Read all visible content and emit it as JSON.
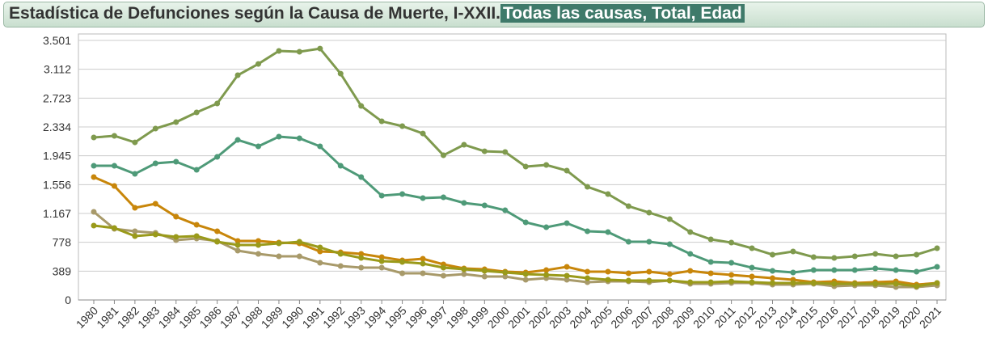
{
  "chart_data": {
    "type": "line",
    "title": "Estadística de Defunciones según la Causa de Muerte, I-XXII.",
    "subtitle": "Todas las causas, Total, Edad",
    "categories": [
      "1980",
      "1981",
      "1982",
      "1983",
      "1984",
      "1985",
      "1986",
      "1987",
      "1988",
      "1989",
      "1990",
      "1991",
      "1992",
      "1993",
      "1994",
      "1995",
      "1996",
      "1997",
      "1998",
      "1999",
      "2000",
      "2001",
      "2002",
      "2003",
      "2004",
      "2005",
      "2006",
      "2007",
      "2008",
      "2009",
      "2010",
      "2011",
      "2012",
      "2013",
      "2014",
      "2015",
      "2016",
      "2017",
      "2018",
      "2019",
      "2020",
      "2021"
    ],
    "ylim": [
      0,
      3501
    ],
    "yticks": [
      0,
      389,
      778,
      {
        "value": 1167,
        "label": "1.167"
      },
      {
        "value": 1556,
        "label": "1.556"
      },
      {
        "value": 1945,
        "label": "1.945"
      },
      {
        "value": 2334,
        "label": "2.334"
      },
      {
        "value": 2723,
        "label": "2.723"
      },
      {
        "value": 3112,
        "label": "3.112"
      },
      {
        "value": 3501,
        "label": "3.501"
      }
    ],
    "grid": true,
    "series": [
      {
        "color": "#7f9a4e",
        "values": [
          2192,
          2214,
          2126,
          2312,
          2399,
          2530,
          2650,
          3032,
          3184,
          3359,
          3348,
          3391,
          3053,
          2617,
          2410,
          2345,
          2246,
          1952,
          2094,
          2006,
          1996,
          1799,
          1821,
          1745,
          1527,
          1429,
          1265,
          1178,
          1090,
          916,
          818,
          774,
          698,
          611,
          654,
          578,
          567,
          589,
          622,
          589,
          611,
          698
        ]
      },
      {
        "color": "#4e9a78",
        "values": [
          1810,
          1810,
          1701,
          1843,
          1865,
          1756,
          1930,
          2159,
          2072,
          2203,
          2181,
          2072,
          1810,
          1658,
          1407,
          1429,
          1374,
          1385,
          1309,
          1276,
          1210,
          1047,
          981,
          1036,
          927,
          916,
          785,
          785,
          752,
          622,
          513,
          502,
          436,
          393,
          371,
          403,
          403,
          403,
          425,
          403,
          382,
          447
        ]
      },
      {
        "color": "#c8860a",
        "values": [
          1658,
          1538,
          1243,
          1298,
          1123,
          1014,
          927,
          796,
          796,
          774,
          763,
          654,
          643,
          622,
          578,
          534,
          556,
          480,
          425,
          414,
          382,
          371,
          403,
          447,
          382,
          382,
          360,
          382,
          349,
          393,
          360,
          338,
          316,
          294,
          273,
          240,
          251,
          229,
          240,
          251,
          207,
          229
        ]
      },
      {
        "color": "#a89a6a",
        "values": [
          1189,
          960,
          927,
          905,
          807,
          829,
          796,
          665,
          622,
          589,
          589,
          502,
          458,
          436,
          436,
          360,
          360,
          327,
          349,
          316,
          316,
          273,
          294,
          273,
          240,
          251,
          251,
          240,
          262,
          218,
          218,
          229,
          229,
          207,
          207,
          218,
          185,
          196,
          196,
          174,
          174,
          196
        ]
      },
      {
        "color": "#9a9a1a",
        "values": [
          1003,
          971,
          862,
          883,
          851,
          862,
          785,
          742,
          742,
          763,
          785,
          709,
          622,
          567,
          523,
          513,
          491,
          436,
          414,
          393,
          371,
          349,
          338,
          327,
          294,
          273,
          262,
          262,
          262,
          240,
          240,
          251,
          240,
          229,
          229,
          229,
          218,
          218,
          218,
          218,
          185,
          229
        ]
      }
    ]
  }
}
